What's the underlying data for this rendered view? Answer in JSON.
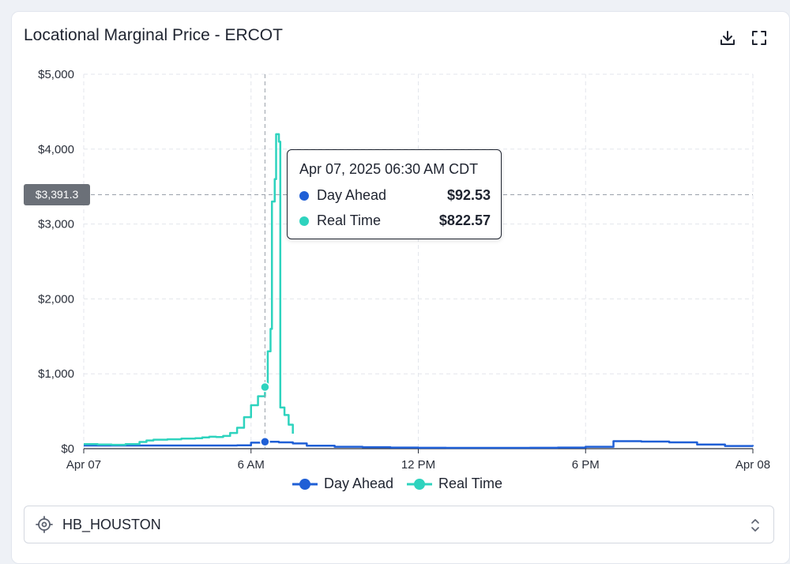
{
  "card": {
    "title": "Locational Marginal Price - ERCOT",
    "icons": {
      "download": "download-icon",
      "expand": "fullscreen-icon"
    }
  },
  "colors": {
    "day_ahead": "#1f5fd6",
    "real_time": "#2ed3be",
    "grid": "#e3e6ec",
    "crosshair": "#9aa0aa"
  },
  "tooltip": {
    "title": "Apr 07, 2025 06:30 AM CDT",
    "rows": [
      {
        "label": "Day Ahead",
        "value": "$92.53"
      },
      {
        "label": "Real Time",
        "value": "$822.57"
      }
    ]
  },
  "crosshair": {
    "y_label": "$3,391.3",
    "y_value": 3391.3,
    "x_value": 6.5
  },
  "selector": {
    "value": "HB_HOUSTON",
    "icon": "location-target-icon",
    "chevron": "chevron-up-down-icon"
  },
  "chart_data": {
    "type": "line",
    "title": "",
    "xlabel": "",
    "ylabel": "",
    "xlim": [
      0,
      24
    ],
    "ylim": [
      0,
      5000
    ],
    "x_ticks": [
      {
        "x": 0,
        "label": "Apr 07"
      },
      {
        "x": 6,
        "label": "6 AM"
      },
      {
        "x": 12,
        "label": "12 PM"
      },
      {
        "x": 18,
        "label": "6 PM"
      },
      {
        "x": 24,
        "label": "Apr 08"
      }
    ],
    "y_ticks": [
      {
        "y": 0,
        "label": "$0"
      },
      {
        "y": 1000,
        "label": "$1,000"
      },
      {
        "y": 2000,
        "label": "$2,000"
      },
      {
        "y": 3000,
        "label": "$3,000"
      },
      {
        "y": 4000,
        "label": "$4,000"
      },
      {
        "y": 5000,
        "label": "$5,000"
      }
    ],
    "grid": true,
    "legend": "bottom-center",
    "series": [
      {
        "name": "Day Ahead",
        "step": true,
        "points": [
          [
            0,
            42
          ],
          [
            1,
            42
          ],
          [
            2,
            42
          ],
          [
            3,
            42
          ],
          [
            4,
            42
          ],
          [
            5,
            42
          ],
          [
            5.5,
            45
          ],
          [
            6,
            80
          ],
          [
            6.5,
            92.53
          ],
          [
            7,
            85
          ],
          [
            7.5,
            70
          ],
          [
            8,
            40
          ],
          [
            9,
            25
          ],
          [
            10,
            20
          ],
          [
            11,
            15
          ],
          [
            12,
            12
          ],
          [
            13,
            10
          ],
          [
            14,
            10
          ],
          [
            15,
            10
          ],
          [
            16,
            12
          ],
          [
            17,
            15
          ],
          [
            18,
            25
          ],
          [
            19,
            100
          ],
          [
            20,
            95
          ],
          [
            21,
            85
          ],
          [
            22,
            55
          ],
          [
            23,
            35
          ],
          [
            24,
            30
          ]
        ]
      },
      {
        "name": "Real Time",
        "step": true,
        "points": [
          [
            0,
            60
          ],
          [
            0.25,
            60
          ],
          [
            0.5,
            55
          ],
          [
            1,
            52
          ],
          [
            1.5,
            60
          ],
          [
            2,
            90
          ],
          [
            2.25,
            110
          ],
          [
            2.5,
            120
          ],
          [
            3,
            125
          ],
          [
            3.5,
            135
          ],
          [
            4,
            140
          ],
          [
            4.25,
            150
          ],
          [
            4.5,
            160
          ],
          [
            4.75,
            155
          ],
          [
            5,
            170
          ],
          [
            5.25,
            210
          ],
          [
            5.5,
            280
          ],
          [
            5.75,
            420
          ],
          [
            6,
            580
          ],
          [
            6.25,
            700
          ],
          [
            6.5,
            822.57
          ],
          [
            6.6,
            1300
          ],
          [
            6.7,
            1600
          ],
          [
            6.75,
            3300
          ],
          [
            6.85,
            3600
          ],
          [
            6.9,
            4200
          ],
          [
            7.0,
            4100
          ],
          [
            7.05,
            550
          ],
          [
            7.2,
            450
          ],
          [
            7.35,
            320
          ],
          [
            7.5,
            200
          ]
        ]
      }
    ]
  }
}
